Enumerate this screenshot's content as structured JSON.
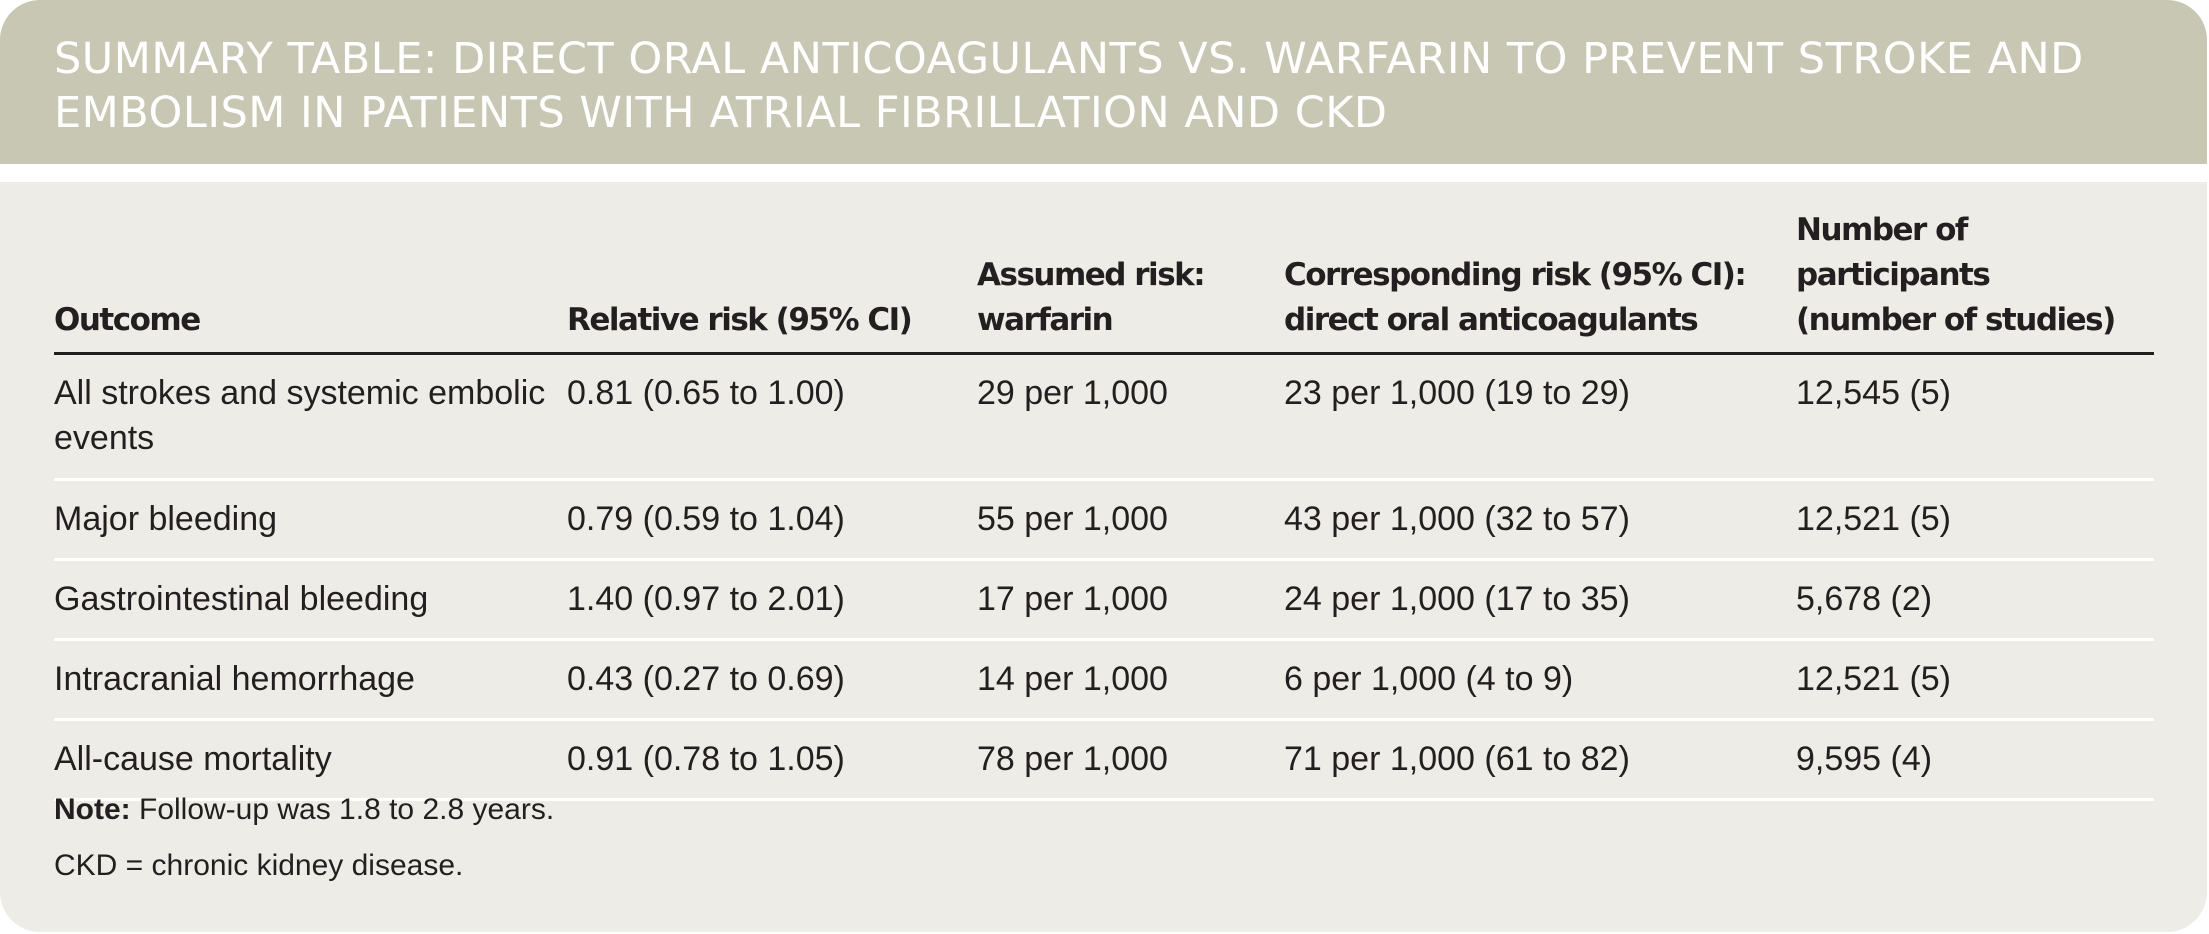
{
  "title": "Summary Table: Direct Oral Anticoagulants vs. Warfarin to Prevent Stroke and Embolism in Patients with Atrial Fibrillation and CKD",
  "columns": [
    {
      "line1": "",
      "line2": "Outcome"
    },
    {
      "line1": "",
      "line2": "Relative risk (95% CI)"
    },
    {
      "line1": "Assumed risk:",
      "line2": "warfarin"
    },
    {
      "line1": "Corresponding risk (95% CI):",
      "line2": "direct oral anticoagulants"
    },
    {
      "line1": "Number of participants",
      "line2": "(number of studies)"
    }
  ],
  "rows": [
    {
      "outcome": "All strokes and systemic embolic events",
      "relative_risk": "0.81 (0.65 to 1.00)",
      "assumed_risk": "29 per 1,000",
      "corresponding_risk": "23 per 1,000 (19 to 29)",
      "participants": "12,545 (5)"
    },
    {
      "outcome": "Major bleeding",
      "relative_risk": "0.79 (0.59 to 1.04)",
      "assumed_risk": "55 per 1,000",
      "corresponding_risk": "43 per 1,000 (32 to 57)",
      "participants": "12,521 (5)"
    },
    {
      "outcome": "Gastrointestinal bleeding",
      "relative_risk": "1.40 (0.97 to 2.01)",
      "assumed_risk": "17 per 1,000",
      "corresponding_risk": "24 per 1,000 (17 to 35)",
      "participants": "5,678 (2)"
    },
    {
      "outcome": "Intracranial hemorrhage",
      "relative_risk": "0.43 (0.27 to 0.69)",
      "assumed_risk": "14 per 1,000",
      "corresponding_risk": "6 per 1,000 (4 to 9)",
      "participants": "12,521 (5)"
    },
    {
      "outcome": "All-cause mortality",
      "relative_risk": "0.91 (0.78 to 1.05)",
      "assumed_risk": "78 per 1,000",
      "corresponding_risk": "71 per 1,000 (61 to 82)",
      "participants": "9,595 (4)"
    }
  ],
  "note": {
    "label": "Note:",
    "text": " Follow-up was 1.8 to 2.8 years."
  },
  "abbreviation": "CKD = chronic kidney disease.",
  "colors": {
    "header_band": "#c8c7b3",
    "background": "#eeece6",
    "text": "#231f20"
  }
}
